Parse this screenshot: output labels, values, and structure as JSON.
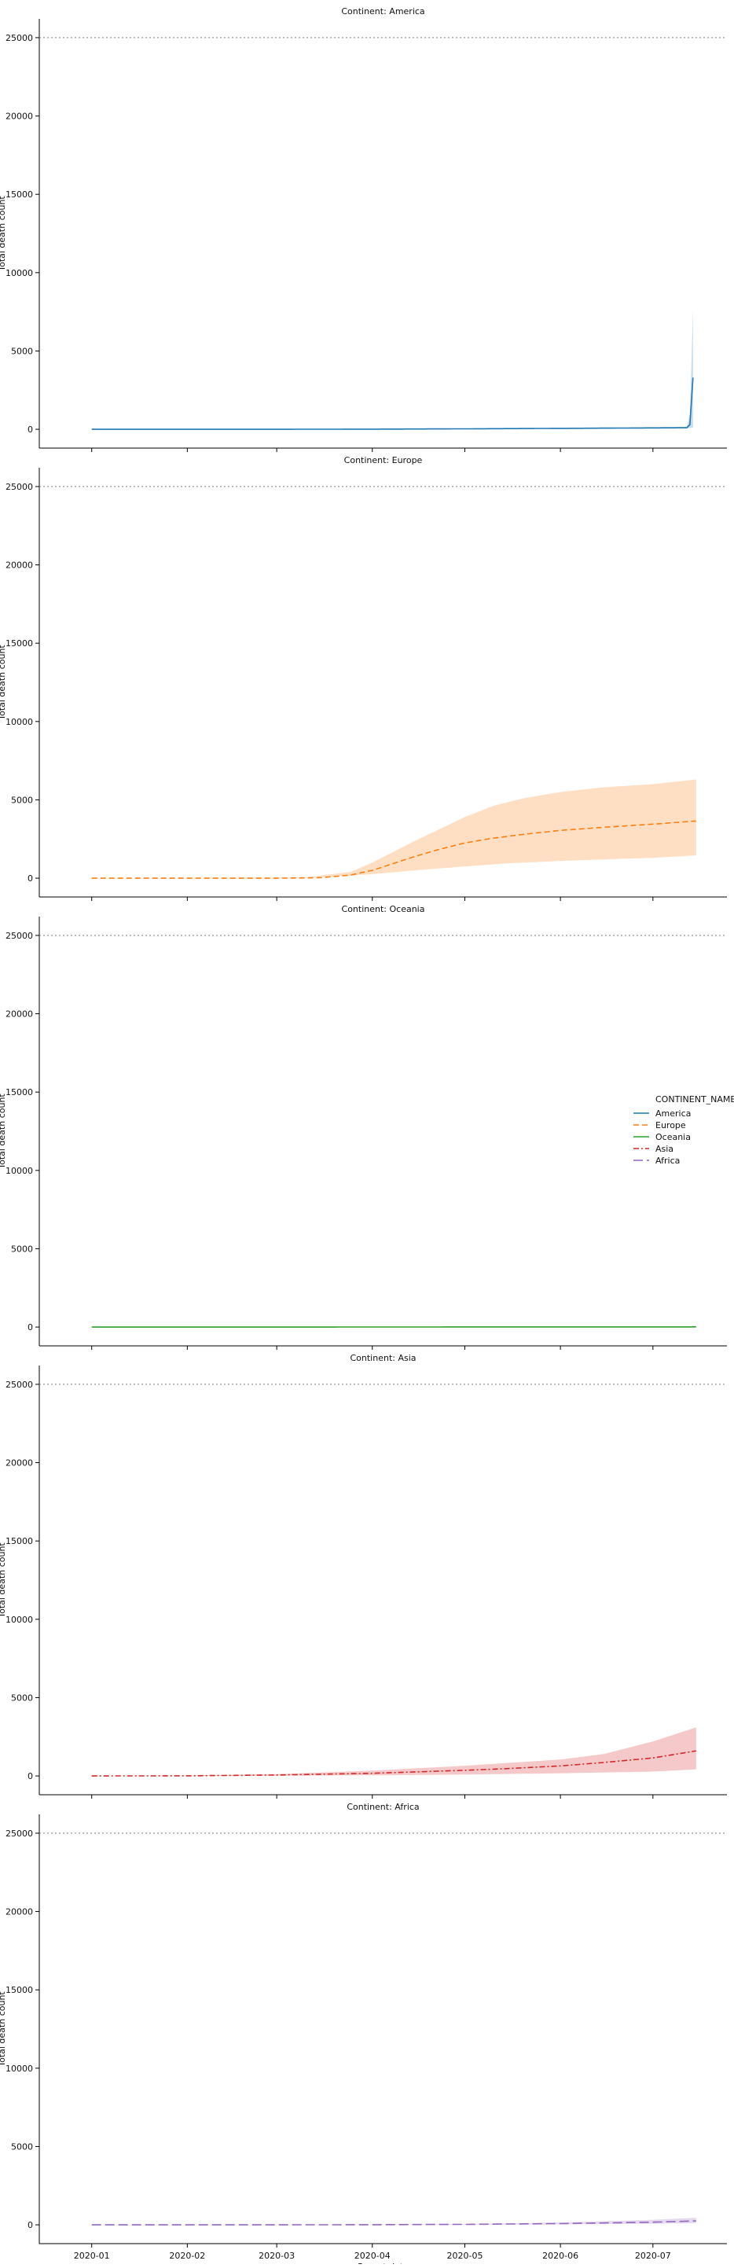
{
  "chart_data": {
    "type": "line",
    "layout": "faceted",
    "x_label": "Report date",
    "y_label": "Total death count",
    "x_ticks": [
      "2020-01",
      "2020-02",
      "2020-03",
      "2020-04",
      "2020-05",
      "2020-06",
      "2020-07"
    ],
    "x_range": [
      "2019-12-15",
      "2020-07-25"
    ],
    "y_range": [
      -1200,
      26200
    ],
    "y_ticks": [
      0,
      5000,
      10000,
      15000,
      20000,
      25000
    ],
    "reference_line": {
      "y": 25000,
      "style": "dotted",
      "color": "#808080"
    },
    "legend": {
      "title": "CONTINENT_NAME",
      "placement": "right",
      "entries": [
        {
          "name": "America",
          "color": "#1f77b4",
          "dash": "solid"
        },
        {
          "name": "Europe",
          "color": "#ff7f0e",
          "dash": "dashed"
        },
        {
          "name": "Oceania",
          "color": "#2ca02c",
          "dash": "solid"
        },
        {
          "name": "Asia",
          "color": "#d62728",
          "dash": "dashdot"
        },
        {
          "name": "Africa",
          "color": "#9467bd",
          "dash": "longdash"
        }
      ]
    },
    "facets": [
      {
        "title": "Continent: America",
        "series": "America",
        "color": "#1f77b4",
        "dash": "solid",
        "band_opacity": 0.25,
        "mean": [
          [
            "2020-01-01",
            0
          ],
          [
            "2020-03-01",
            0
          ],
          [
            "2020-04-01",
            10
          ],
          [
            "2020-05-01",
            30
          ],
          [
            "2020-06-01",
            60
          ],
          [
            "2020-07-01",
            90
          ],
          [
            "2020-07-12",
            100
          ],
          [
            "2020-07-13",
            300
          ],
          [
            "2020-07-14",
            3300
          ]
        ],
        "lower": [
          [
            "2020-01-01",
            0
          ],
          [
            "2020-04-01",
            5
          ],
          [
            "2020-06-01",
            30
          ],
          [
            "2020-07-12",
            50
          ],
          [
            "2020-07-13",
            100
          ],
          [
            "2020-07-14",
            100
          ]
        ],
        "upper": [
          [
            "2020-01-01",
            0
          ],
          [
            "2020-04-01",
            15
          ],
          [
            "2020-06-01",
            90
          ],
          [
            "2020-07-12",
            150
          ],
          [
            "2020-07-13",
            1000
          ],
          [
            "2020-07-14",
            7700
          ]
        ]
      },
      {
        "title": "Continent: Europe",
        "series": "Europe",
        "color": "#ff7f0e",
        "dash": "dashed",
        "band_opacity": 0.25,
        "mean": [
          [
            "2020-01-01",
            0
          ],
          [
            "2020-02-01",
            0
          ],
          [
            "2020-03-01",
            0
          ],
          [
            "2020-03-15",
            30
          ],
          [
            "2020-03-25",
            200
          ],
          [
            "2020-04-01",
            500
          ],
          [
            "2020-04-08",
            950
          ],
          [
            "2020-04-15",
            1400
          ],
          [
            "2020-04-22",
            1800
          ],
          [
            "2020-05-01",
            2250
          ],
          [
            "2020-05-10",
            2550
          ],
          [
            "2020-05-20",
            2800
          ],
          [
            "2020-06-01",
            3050
          ],
          [
            "2020-06-15",
            3250
          ],
          [
            "2020-07-01",
            3450
          ],
          [
            "2020-07-15",
            3650
          ]
        ],
        "lower": [
          [
            "2020-01-01",
            0
          ],
          [
            "2020-03-10",
            0
          ],
          [
            "2020-04-01",
            250
          ],
          [
            "2020-04-15",
            500
          ],
          [
            "2020-05-01",
            750
          ],
          [
            "2020-05-15",
            950
          ],
          [
            "2020-06-01",
            1100
          ],
          [
            "2020-06-15",
            1200
          ],
          [
            "2020-07-01",
            1300
          ],
          [
            "2020-07-15",
            1450
          ]
        ],
        "upper": [
          [
            "2020-01-01",
            0
          ],
          [
            "2020-03-10",
            50
          ],
          [
            "2020-03-25",
            400
          ],
          [
            "2020-04-01",
            1000
          ],
          [
            "2020-04-15",
            2400
          ],
          [
            "2020-05-01",
            3900
          ],
          [
            "2020-05-10",
            4600
          ],
          [
            "2020-05-20",
            5100
          ],
          [
            "2020-06-01",
            5500
          ],
          [
            "2020-06-15",
            5800
          ],
          [
            "2020-07-01",
            6000
          ],
          [
            "2020-07-15",
            6300
          ]
        ]
      },
      {
        "title": "Continent: Oceania",
        "series": "Oceania",
        "color": "#2ca02c",
        "dash": "solid",
        "band_opacity": 0.25,
        "mean": [
          [
            "2020-01-01",
            0
          ],
          [
            "2020-03-15",
            1
          ],
          [
            "2020-05-01",
            8
          ],
          [
            "2020-07-15",
            12
          ]
        ],
        "lower": [
          [
            "2020-01-01",
            0
          ],
          [
            "2020-07-15",
            3
          ]
        ],
        "upper": [
          [
            "2020-01-01",
            0
          ],
          [
            "2020-07-15",
            25
          ]
        ]
      },
      {
        "title": "Continent: Asia",
        "series": "Asia",
        "color": "#d62728",
        "dash": "dashdot",
        "band_opacity": 0.25,
        "mean": [
          [
            "2020-01-01",
            0
          ],
          [
            "2020-02-01",
            10
          ],
          [
            "2020-03-01",
            60
          ],
          [
            "2020-04-01",
            170
          ],
          [
            "2020-05-01",
            360
          ],
          [
            "2020-05-15",
            470
          ],
          [
            "2020-06-01",
            640
          ],
          [
            "2020-06-15",
            860
          ],
          [
            "2020-07-01",
            1150
          ],
          [
            "2020-07-15",
            1600
          ]
        ],
        "lower": [
          [
            "2020-01-01",
            0
          ],
          [
            "2020-02-01",
            0
          ],
          [
            "2020-03-01",
            20
          ],
          [
            "2020-04-01",
            40
          ],
          [
            "2020-05-01",
            90
          ],
          [
            "2020-06-01",
            170
          ],
          [
            "2020-07-01",
            280
          ],
          [
            "2020-07-15",
            420
          ]
        ],
        "upper": [
          [
            "2020-01-01",
            0
          ],
          [
            "2020-02-01",
            20
          ],
          [
            "2020-03-01",
            120
          ],
          [
            "2020-04-01",
            340
          ],
          [
            "2020-05-01",
            650
          ],
          [
            "2020-06-01",
            1050
          ],
          [
            "2020-06-15",
            1400
          ],
          [
            "2020-07-01",
            2200
          ],
          [
            "2020-07-15",
            3100
          ]
        ]
      },
      {
        "title": "Continent: Africa",
        "series": "Africa",
        "color": "#9467bd",
        "dash": "longdash",
        "band_opacity": 0.25,
        "mean": [
          [
            "2020-01-01",
            0
          ],
          [
            "2020-03-01",
            0
          ],
          [
            "2020-04-01",
            10
          ],
          [
            "2020-05-01",
            30
          ],
          [
            "2020-06-01",
            80
          ],
          [
            "2020-07-01",
            170
          ],
          [
            "2020-07-15",
            250
          ]
        ],
        "lower": [
          [
            "2020-01-01",
            0
          ],
          [
            "2020-05-01",
            10
          ],
          [
            "2020-06-01",
            30
          ],
          [
            "2020-07-01",
            70
          ],
          [
            "2020-07-15",
            110
          ]
        ],
        "upper": [
          [
            "2020-01-01",
            0
          ],
          [
            "2020-04-01",
            20
          ],
          [
            "2020-05-01",
            60
          ],
          [
            "2020-06-01",
            150
          ],
          [
            "2020-07-01",
            320
          ],
          [
            "2020-07-15",
            450
          ]
        ]
      }
    ]
  }
}
